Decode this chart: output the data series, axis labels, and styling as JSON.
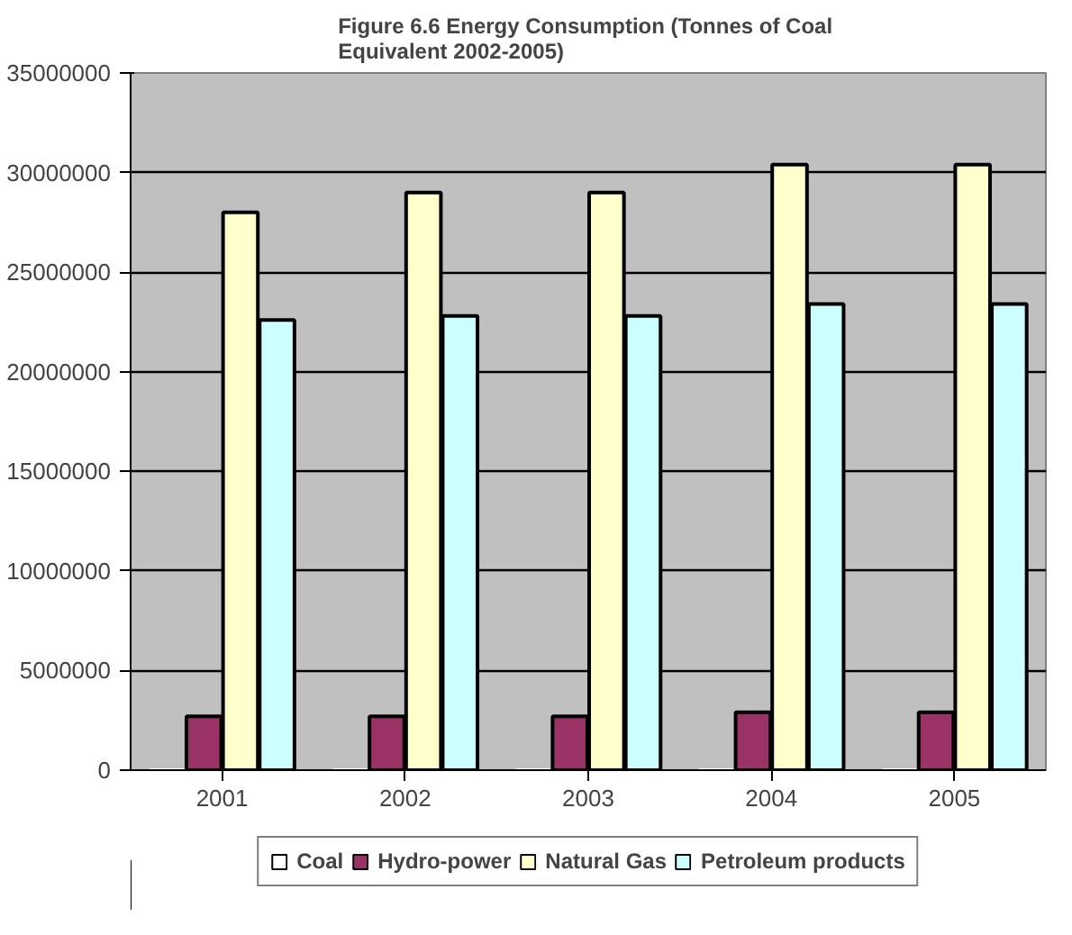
{
  "chart_data": {
    "type": "bar",
    "title": "Figure 6.6  Energy Consumption (Tonnes of Coal\nEquivalent  2002-2005)",
    "categories": [
      "2001",
      "2002",
      "2003",
      "2004",
      "2005"
    ],
    "series": [
      {
        "name": "Coal",
        "color": "#ffffff",
        "values": [
          0,
          0,
          0,
          0,
          0
        ]
      },
      {
        "name": "Hydro-power",
        "color": "#993366",
        "values": [
          2700000,
          2700000,
          2700000,
          2900000,
          2900000
        ]
      },
      {
        "name": "Natural Gas",
        "color": "#ffffcc",
        "values": [
          28000000,
          29000000,
          29000000,
          30400000,
          30400000
        ]
      },
      {
        "name": "Petroleum products",
        "color": "#ccffff",
        "values": [
          22600000,
          22800000,
          22800000,
          23400000,
          23400000
        ]
      }
    ],
    "ylim": [
      0,
      35000000
    ],
    "yticks": [
      0,
      5000000,
      10000000,
      15000000,
      20000000,
      25000000,
      30000000,
      35000000
    ],
    "grid": "y",
    "legend": "bottom"
  }
}
